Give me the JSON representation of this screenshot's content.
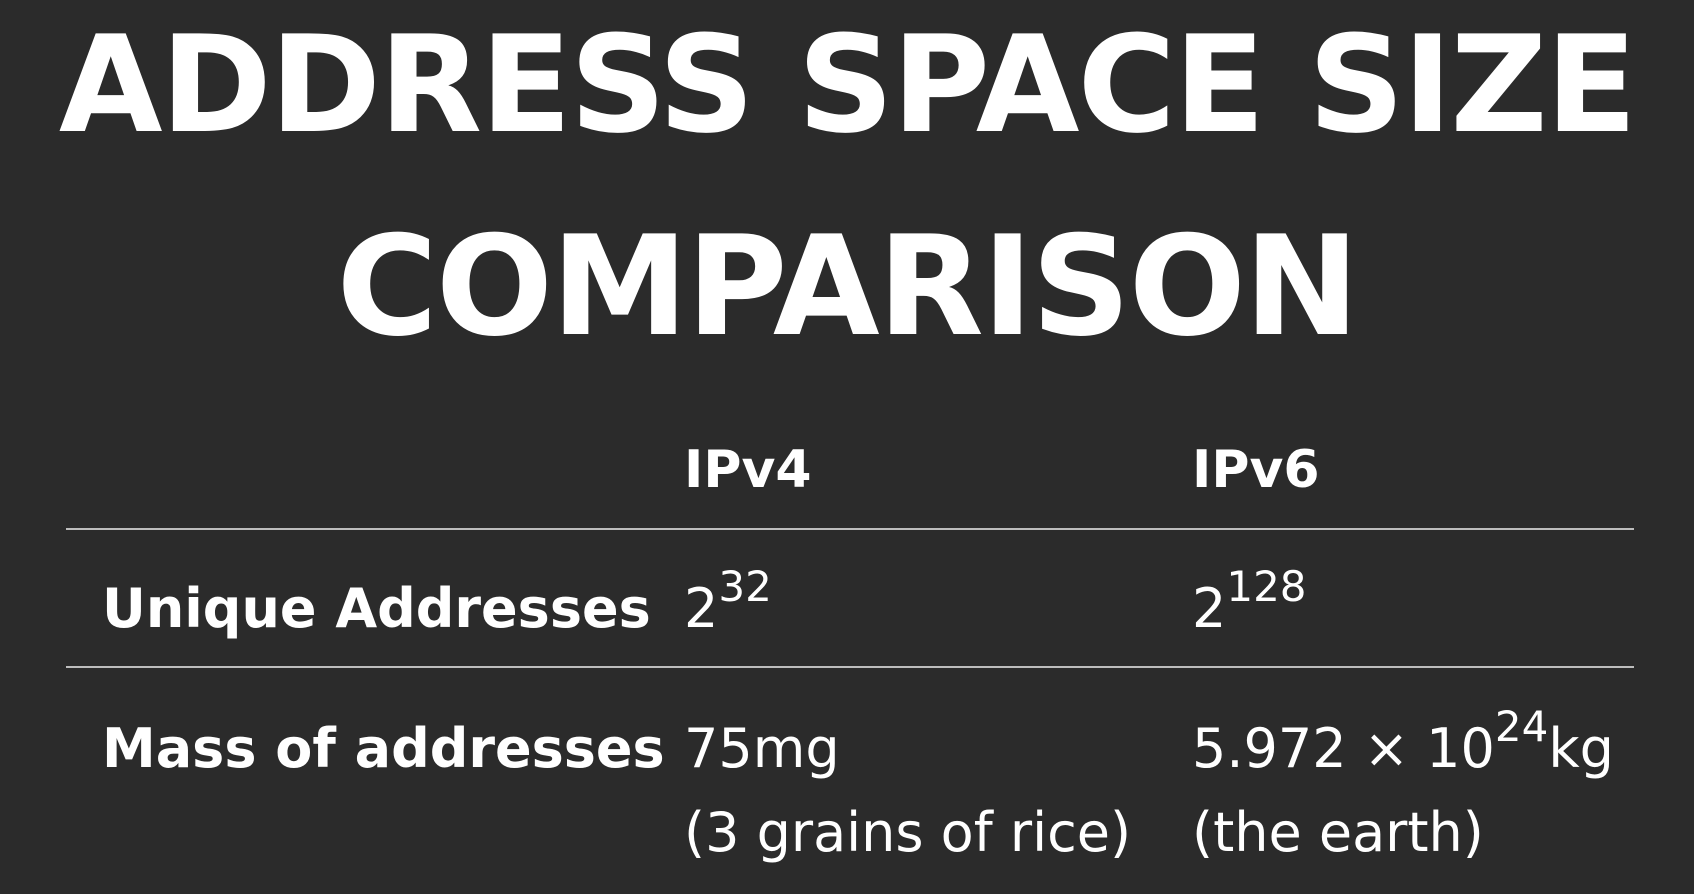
{
  "slide": {
    "title_line1": "ADDRESS SPACE SIZE",
    "title_line2": "COMPARISON"
  },
  "table": {
    "headers": [
      "",
      "IPv4",
      "IPv6"
    ],
    "rows": [
      {
        "label": "Unique Addresses",
        "ipv4": {
          "base": "2",
          "exponent": "32"
        },
        "ipv6": {
          "base": "2",
          "exponent": "128"
        }
      },
      {
        "label": "Mass of addresses",
        "ipv4": {
          "line1": "75mg",
          "line2": "(3 grains of rice)"
        },
        "ipv6": {
          "mantissa": "5.972 × 10",
          "exponent": "24",
          "unit": "kg",
          "line2": "(the earth)"
        }
      }
    ]
  },
  "colors": {
    "background": "#2b2b2b",
    "text": "#ffffff",
    "rule": "#bdbdbd"
  }
}
